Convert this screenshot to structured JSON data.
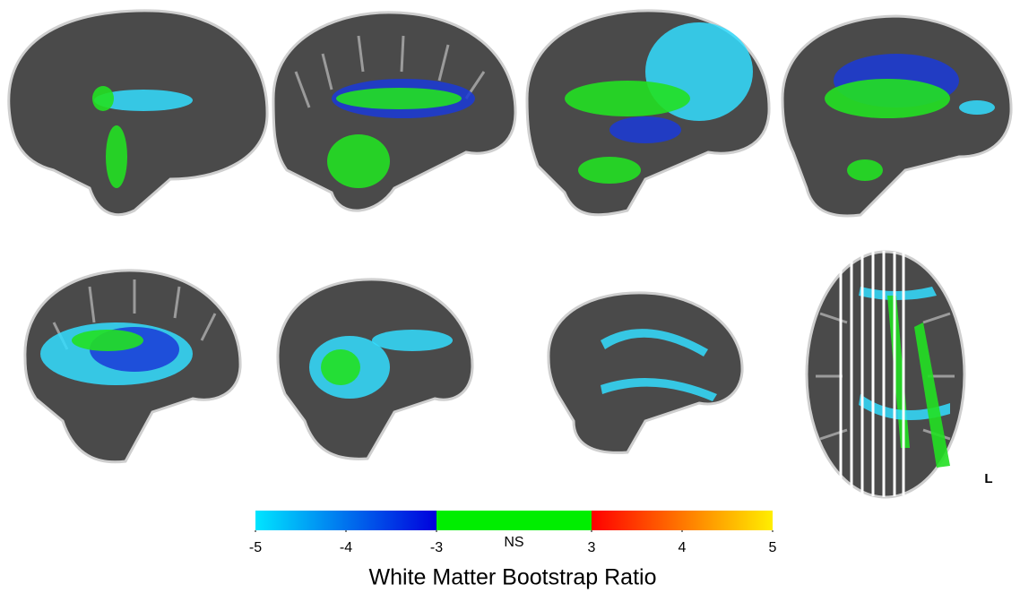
{
  "orientation_label": "L",
  "colorbar": {
    "segments": [
      {
        "from": -5,
        "to": -3,
        "colors": [
          "#00e5ff",
          "#0000dd"
        ]
      },
      {
        "label": "NS",
        "color": "#00ee00"
      },
      {
        "from": 3,
        "to": 5,
        "colors": [
          "#ff0000",
          "#ffee00"
        ]
      }
    ],
    "ticks": [
      -5,
      -4,
      -3,
      3,
      4,
      5
    ],
    "label": "White Matter Bootstrap Ratio"
  }
}
